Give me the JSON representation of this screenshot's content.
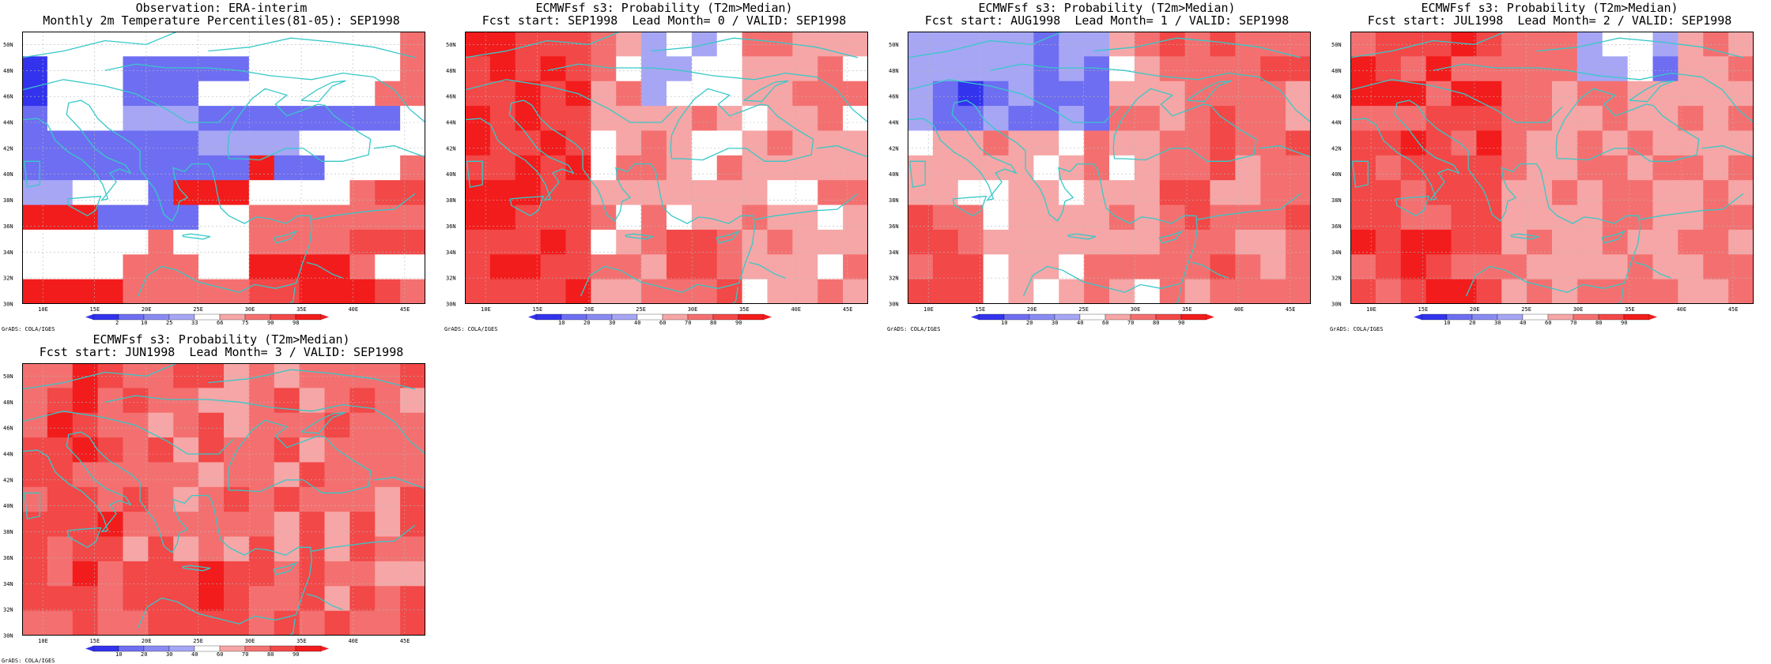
{
  "grads_label": "GrADS: COLA/IGES",
  "lon_ticks": [
    "10E",
    "15E",
    "20E",
    "25E",
    "30E",
    "35E",
    "40E",
    "45E"
  ],
  "lat_ticks": [
    "30N",
    "32N",
    "34N",
    "36N",
    "38N",
    "40N",
    "42N",
    "44N",
    "46N",
    "48N",
    "50N"
  ],
  "colors": {
    "white": "#ffffff",
    "blue_dark": "#3333ee",
    "blue_mid": "#6e6ef2",
    "blue_light": "#a6a6f5",
    "red_light": "#f6a6a6",
    "red_mid": "#f47070",
    "red_strong": "#f24848",
    "red_dark": "#f21c1c",
    "coast": "#38c8c8",
    "grid": "#b8b8b8"
  },
  "panels": [
    {
      "title1": "Observation: ERA-interim",
      "title2": "Monthly 2m Temperature Percentiles(81-05): SEP1998",
      "colorbar_labels": [
        "2",
        "10",
        "25",
        "33",
        "66",
        "75",
        "90",
        "98"
      ],
      "grid": [
        "0000000000000002222223",
        "7000-----000000222333",
        "7000---000000022222",
        "6000555--------0003333",
        "66--666555500000333",
        "66-------4--00023333",
        "55000-444000023333",
        "444----0022222223",
        "00000200022223333",
        "00002220044442",
        "4444222223344432"
      ]
    },
    {
      "title1": "ECMWFsf s3: Probability (T2m>Median)",
      "title2": "Fcst start: SEP1998  Lead Month= 0 / VALID: SEP1998",
      "colorbar_labels": [
        "10",
        "20",
        "30",
        "40",
        "60",
        "70",
        "80",
        "90"
      ],
      "grid": []
    },
    {
      "title1": "ECMWFsf s3: Probability (T2m>Median)",
      "title2": "Fcst start: AUG1998  Lead Month= 1 / VALID: SEP1998",
      "colorbar_labels": [
        "10",
        "20",
        "30",
        "40",
        "60",
        "70",
        "80",
        "90"
      ],
      "grid": []
    },
    {
      "title1": "ECMWFsf s3: Probability (T2m>Median)",
      "title2": "Fcst start: JUL1998  Lead Month= 2 / VALID: SEP1998",
      "colorbar_labels": [
        "10",
        "20",
        "30",
        "40",
        "60",
        "70",
        "80",
        "90"
      ],
      "grid": []
    },
    {
      "title1": "ECMWFsf s3: Probability (T2m>Median)",
      "title2": "Fcst start: JUN1998  Lead Month= 3 / VALID: SEP1998",
      "colorbar_labels": [
        "10",
        "20",
        "30",
        "40",
        "60",
        "70",
        "80",
        "90"
      ],
      "grid": []
    }
  ]
}
